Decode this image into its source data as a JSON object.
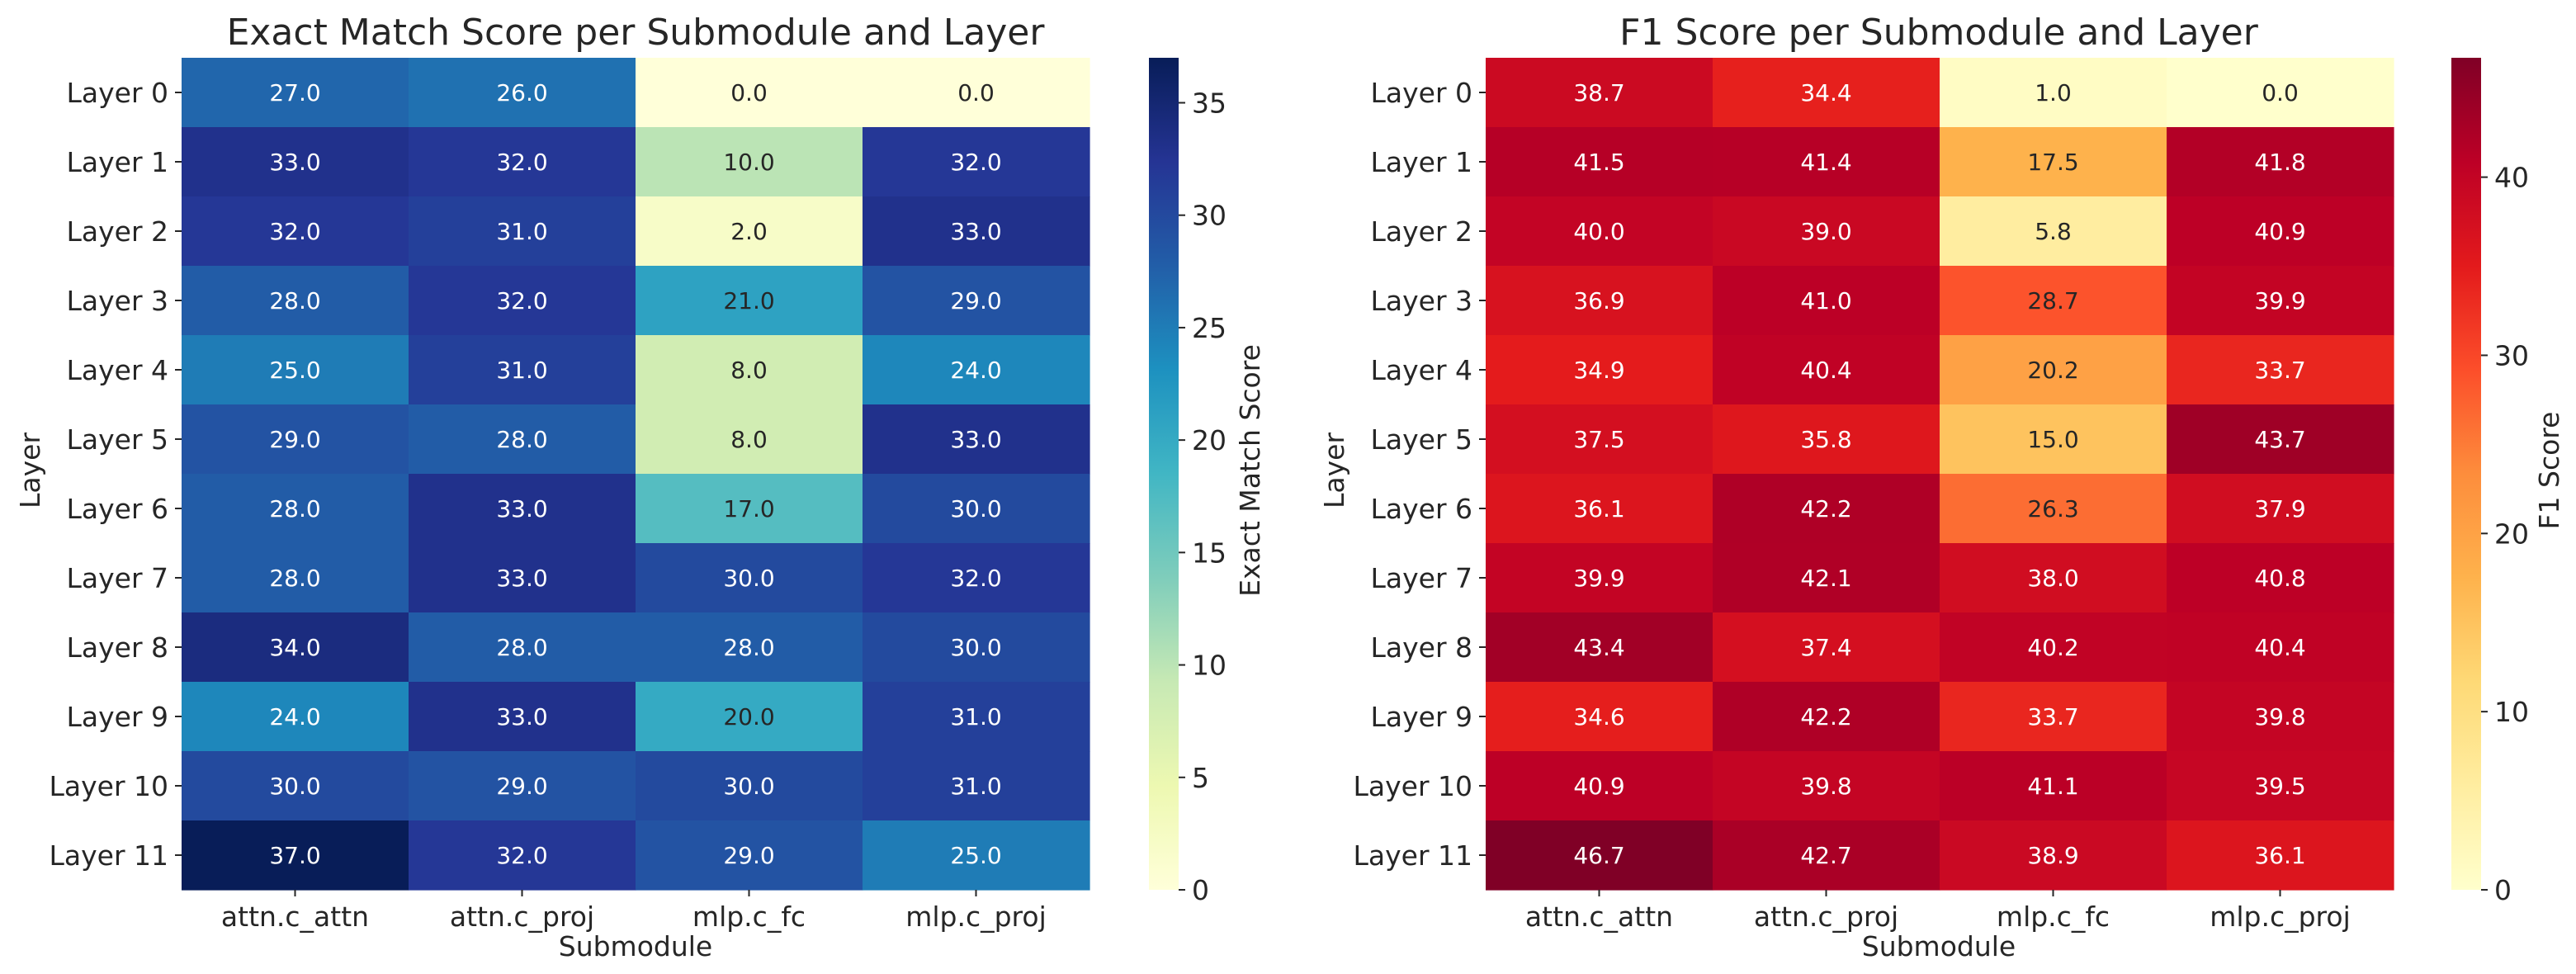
{
  "chart_data": [
    {
      "type": "heatmap",
      "title": "Exact Match Score per Submodule and Layer",
      "xlabel": "Submodule",
      "ylabel": "Layer",
      "colorbar_label": "Exact Match Score",
      "colormap": "YlGnBu",
      "vmin": 0,
      "vmax": 37,
      "colorbar_ticks": [
        0,
        5,
        10,
        15,
        20,
        25,
        30,
        35
      ],
      "x_categories": [
        "attn.c_attn",
        "attn.c_proj",
        "mlp.c_fc",
        "mlp.c_proj"
      ],
      "y_categories": [
        "Layer 0",
        "Layer 1",
        "Layer 2",
        "Layer 3",
        "Layer 4",
        "Layer 5",
        "Layer 6",
        "Layer 7",
        "Layer 8",
        "Layer 9",
        "Layer 10",
        "Layer 11"
      ],
      "values": [
        [
          27.0,
          26.0,
          0.0,
          0.0
        ],
        [
          33.0,
          32.0,
          10.0,
          32.0
        ],
        [
          32.0,
          31.0,
          2.0,
          33.0
        ],
        [
          28.0,
          32.0,
          21.0,
          29.0
        ],
        [
          25.0,
          31.0,
          8.0,
          24.0
        ],
        [
          29.0,
          28.0,
          8.0,
          33.0
        ],
        [
          28.0,
          33.0,
          17.0,
          30.0
        ],
        [
          28.0,
          33.0,
          30.0,
          32.0
        ],
        [
          34.0,
          28.0,
          28.0,
          30.0
        ],
        [
          24.0,
          33.0,
          20.0,
          31.0
        ],
        [
          30.0,
          29.0,
          30.0,
          31.0
        ],
        [
          37.0,
          32.0,
          29.0,
          25.0
        ]
      ]
    },
    {
      "type": "heatmap",
      "title": "F1 Score per Submodule and Layer",
      "xlabel": "Submodule",
      "ylabel": "Layer",
      "colorbar_label": "F1 Score",
      "colormap": "YlOrRd",
      "vmin": 0,
      "vmax": 46.7,
      "colorbar_ticks": [
        0,
        10,
        20,
        30,
        40
      ],
      "x_categories": [
        "attn.c_attn",
        "attn.c_proj",
        "mlp.c_fc",
        "mlp.c_proj"
      ],
      "y_categories": [
        "Layer 0",
        "Layer 1",
        "Layer 2",
        "Layer 3",
        "Layer 4",
        "Layer 5",
        "Layer 6",
        "Layer 7",
        "Layer 8",
        "Layer 9",
        "Layer 10",
        "Layer 11"
      ],
      "values": [
        [
          38.7,
          34.4,
          1.0,
          0.0
        ],
        [
          41.5,
          41.4,
          17.5,
          41.8
        ],
        [
          40.0,
          39.0,
          5.8,
          40.9
        ],
        [
          36.9,
          41.0,
          28.7,
          39.9
        ],
        [
          34.9,
          40.4,
          20.2,
          33.7
        ],
        [
          37.5,
          35.8,
          15.0,
          43.7
        ],
        [
          36.1,
          42.2,
          26.3,
          37.9
        ],
        [
          39.9,
          42.1,
          38.0,
          40.8
        ],
        [
          43.4,
          37.4,
          40.2,
          40.4
        ],
        [
          34.6,
          42.2,
          33.7,
          39.8
        ],
        [
          40.9,
          39.8,
          41.1,
          39.5
        ],
        [
          46.7,
          42.7,
          38.9,
          36.1
        ]
      ]
    }
  ]
}
